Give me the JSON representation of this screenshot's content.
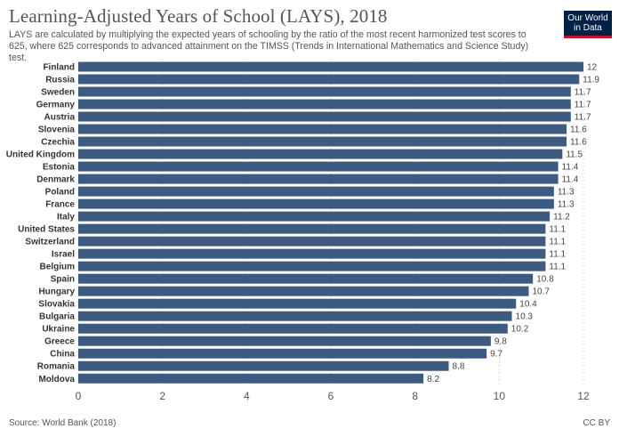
{
  "chart_data": {
    "type": "bar",
    "orientation": "horizontal",
    "title": "Learning-Adjusted Years of School (LAYS), 2018",
    "subtitle": "LAYS are calculated by multiplying the expected years of schooling by the ratio of the most recent harmonized test scores to 625, where 625 corresponds to advanced attainment on the TIMSS (Trends in International Mathematics and Science Study) test.",
    "categories": [
      "Finland",
      "Russia",
      "Sweden",
      "Germany",
      "Austria",
      "Slovenia",
      "Czechia",
      "United Kingdom",
      "Estonia",
      "Denmark",
      "Poland",
      "France",
      "Italy",
      "United States",
      "Switzerland",
      "Israel",
      "Belgium",
      "Spain",
      "Hungary",
      "Slovakia",
      "Bulgaria",
      "Ukraine",
      "Greece",
      "China",
      "Romania",
      "Moldova"
    ],
    "values": [
      12,
      11.9,
      11.7,
      11.7,
      11.7,
      11.6,
      11.6,
      11.5,
      11.4,
      11.4,
      11.3,
      11.3,
      11.2,
      11.1,
      11.1,
      11.1,
      11.1,
      10.8,
      10.7,
      10.4,
      10.3,
      10.2,
      9.8,
      9.7,
      8.8,
      8.2
    ],
    "value_labels": [
      "12",
      "11.9",
      "11.7",
      "11.7",
      "11.7",
      "11.6",
      "11.6",
      "11.5",
      "11.4",
      "11.4",
      "11.3",
      "11.3",
      "11.2",
      "11.1",
      "11.1",
      "11.1",
      "11.1",
      "10.8",
      "10.7",
      "10.4",
      "10.3",
      "10.2",
      "9.8",
      "9.7",
      "8.8",
      "8.2"
    ],
    "xticks": [
      "0",
      "2",
      "4",
      "6",
      "8",
      "10",
      "12"
    ],
    "xlim": [
      0,
      12
    ],
    "xlabel": "",
    "ylabel": "",
    "grid": true,
    "bar_color": "#3d5a80"
  },
  "logo": {
    "line1": "Our World",
    "line2": "in Data"
  },
  "footer": {
    "source": "Source: World Bank (2018)",
    "license": "CC BY"
  }
}
